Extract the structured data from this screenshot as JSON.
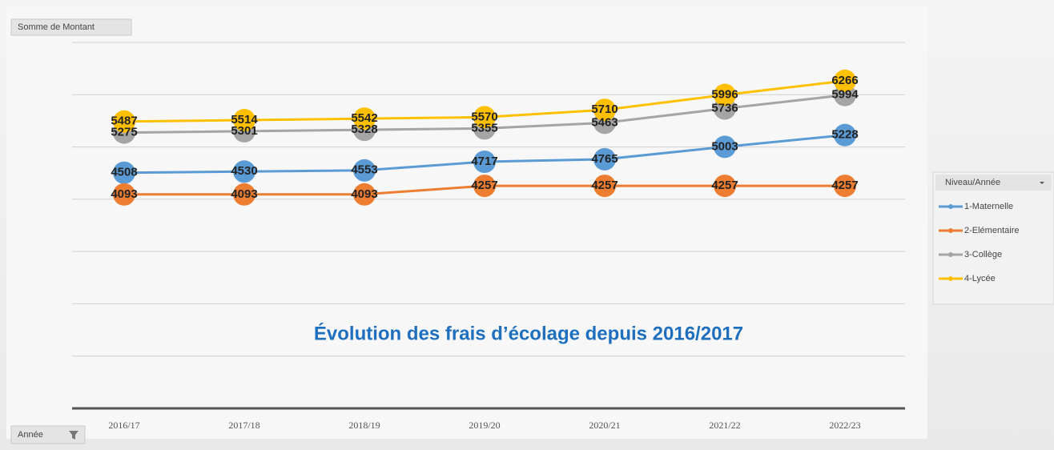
{
  "chart_data": {
    "type": "line",
    "title": "Évolution des frais d’écolage depuis 2016/2017",
    "value_field_button": "Somme de Montant",
    "axis_field_button": "Année",
    "legend_title": "Niveau/Année",
    "legend": "right",
    "grid": true,
    "categories": [
      "2016/17",
      "2017/18",
      "2018/19",
      "2019/20",
      "2020/21",
      "2021/22",
      "2022/23"
    ],
    "ylim": [
      0,
      7000
    ],
    "yticks": [
      0,
      1000,
      2000,
      3000,
      4000,
      5000,
      6000,
      7000
    ],
    "series": [
      {
        "name": "1-Maternelle",
        "color": "#5b9bd5",
        "values": [
          4508,
          4530,
          4553,
          4717,
          4765,
          5003,
          5228
        ]
      },
      {
        "name": "2-Elémentaire",
        "color": "#ed7d31",
        "values": [
          4093,
          4093,
          4093,
          4257,
          4257,
          4257,
          4257
        ]
      },
      {
        "name": "3-Collège",
        "color": "#a5a5a5",
        "values": [
          5275,
          5301,
          5328,
          5355,
          5463,
          5736,
          5994
        ]
      },
      {
        "name": "4-Lycée",
        "color": "#ffc000",
        "values": [
          5487,
          5514,
          5542,
          5570,
          5710,
          5996,
          6266
        ]
      }
    ]
  }
}
